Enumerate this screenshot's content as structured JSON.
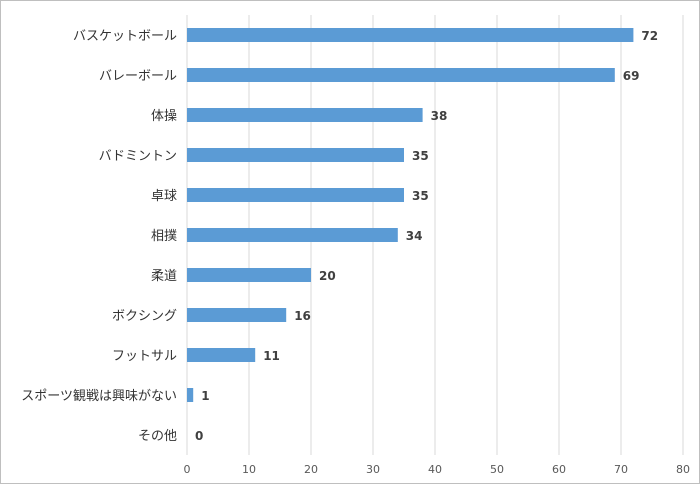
{
  "chart_data": {
    "type": "bar",
    "orientation": "horizontal",
    "categories": [
      "バスケットボール",
      "バレーボール",
      "体操",
      "バドミントン",
      "卓球",
      "相撲",
      "柔道",
      "ボクシング",
      "フットサル",
      "スポーツ観戦は興味がない",
      "その他"
    ],
    "values": [
      72,
      69,
      38,
      35,
      35,
      34,
      20,
      16,
      11,
      1,
      0
    ],
    "x_ticks": [
      "0",
      "10",
      "20",
      "30",
      "40",
      "50",
      "60",
      "70",
      "80"
    ],
    "xlim": [
      0,
      80
    ],
    "grid": "vertical",
    "legend": "none",
    "data_labels": true,
    "bar_color": "#5b9bd5",
    "grid_color": "#d9d9d9"
  }
}
